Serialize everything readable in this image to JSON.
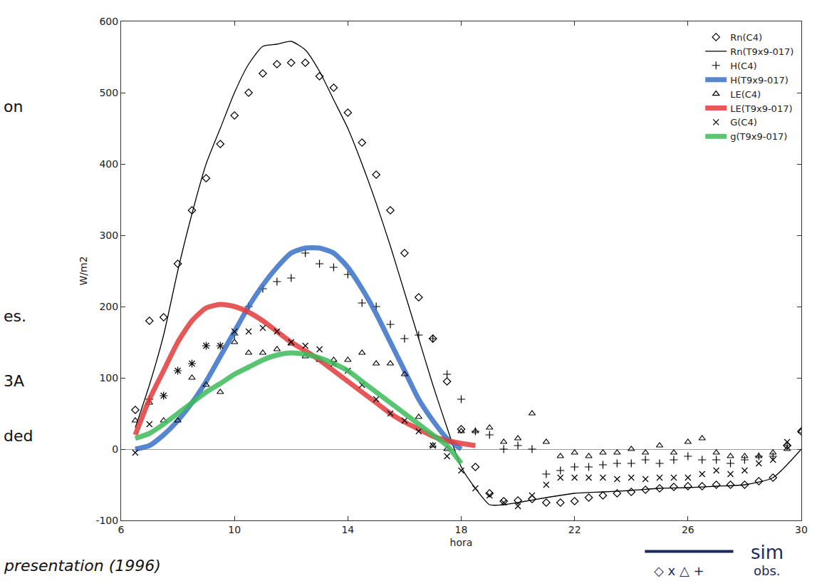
{
  "chart_data": {
    "type": "line",
    "xlabel": "hora",
    "ylabel": "W/m2",
    "xlim": [
      6,
      30
    ],
    "xticks": [
      6,
      10,
      14,
      18,
      22,
      26,
      30
    ],
    "ylim": [
      -100,
      600
    ],
    "yticks": [
      -100,
      0,
      100,
      200,
      300,
      400,
      500,
      600
    ],
    "grid": false,
    "legend": "upper right",
    "annotations": [
      "on",
      "es.",
      "3A",
      "ded",
      "presentation (1996)",
      "sim",
      "◇ x △ +",
      "obs."
    ],
    "series": [
      {
        "name": "Rn(C4)",
        "type": "scatter",
        "marker": "diamond",
        "color": "#000000",
        "x": [
          6.5,
          7,
          7.5,
          8,
          8.5,
          9,
          9.5,
          10,
          10.5,
          11,
          11.5,
          12,
          12.5,
          13,
          13.5,
          14,
          14.5,
          15,
          15.5,
          16,
          16.5,
          17,
          17.5,
          18,
          18.5,
          19,
          19.5,
          20,
          20.5,
          21,
          21.5,
          22,
          22.5,
          23,
          23.5,
          24,
          24.5,
          25,
          25.5,
          26,
          26.5,
          27,
          27.5,
          28,
          28.5,
          29,
          29.5,
          30
        ],
        "values": [
          55,
          180,
          185,
          260,
          335,
          380,
          428,
          468,
          500,
          527,
          540,
          542,
          542,
          523,
          507,
          472,
          430,
          385,
          335,
          275,
          213,
          155,
          95,
          28,
          -25,
          -62,
          -73,
          -72,
          -70,
          -75,
          -75,
          -73,
          -68,
          -65,
          -62,
          -60,
          -57,
          -55,
          -53,
          -52,
          -52,
          -50,
          -50,
          -50,
          -45,
          -40,
          5,
          25
        ]
      },
      {
        "name": "Rn(T9x9-017)",
        "type": "line",
        "line_style": "solid",
        "color": "#000000",
        "x": [
          6.5,
          7,
          7.5,
          8,
          8.5,
          9,
          9.5,
          10,
          10.5,
          11,
          11.5,
          12,
          12.5,
          13,
          13.5,
          14,
          14.5,
          15,
          15.5,
          16,
          16.5,
          17,
          17.5,
          18,
          18.5,
          19,
          19.5,
          20,
          21,
          22,
          23,
          24,
          25,
          26,
          27,
          28,
          29,
          30
        ],
        "values": [
          30,
          90,
          160,
          250,
          330,
          400,
          450,
          500,
          540,
          565,
          568,
          572,
          560,
          530,
          490,
          450,
          400,
          345,
          285,
          220,
          155,
          90,
          30,
          -25,
          -55,
          -78,
          -78,
          -75,
          -68,
          -62,
          -60,
          -58,
          -55,
          -54,
          -52,
          -50,
          -40,
          0
        ]
      },
      {
        "name": "H(C4)",
        "type": "scatter",
        "marker": "plus",
        "color": "#000000",
        "x": [
          7,
          7.5,
          8,
          8.5,
          9,
          9.5,
          10,
          10.5,
          11,
          11.5,
          12,
          12.5,
          13,
          13.5,
          14,
          14.5,
          15,
          15.5,
          16,
          16.5,
          17,
          17.5,
          18,
          18.5,
          19,
          19.5,
          20,
          20.5,
          21,
          21.5,
          22,
          22.5,
          23,
          23.5,
          24,
          24.5,
          25,
          25.5,
          26,
          26.5,
          27,
          27.5,
          28,
          28.5,
          29,
          29.5
        ],
        "values": [
          70,
          75,
          110,
          120,
          145,
          145,
          160,
          200,
          225,
          235,
          240,
          275,
          260,
          255,
          245,
          205,
          200,
          175,
          155,
          160,
          155,
          105,
          70,
          25,
          20,
          0,
          5,
          0,
          -35,
          -30,
          -25,
          -25,
          -22,
          -20,
          -20,
          -15,
          -20,
          -15,
          -10,
          -15,
          -15,
          -20,
          -15,
          -10,
          -10,
          5
        ]
      },
      {
        "name": "H(T9x9-017)",
        "type": "line",
        "line_style": "highlighted",
        "color": "#3a72c8",
        "x": [
          6.5,
          7,
          7.5,
          8,
          8.5,
          9,
          9.5,
          10,
          10.5,
          11,
          11.5,
          12,
          12.5,
          13,
          13.5,
          14,
          14.5,
          15,
          15.5,
          16,
          16.5,
          17,
          17.5,
          18
        ],
        "values": [
          0,
          5,
          20,
          40,
          65,
          95,
          130,
          165,
          200,
          230,
          255,
          275,
          282,
          282,
          275,
          255,
          225,
          190,
          150,
          110,
          70,
          40,
          15,
          0
        ]
      },
      {
        "name": "LE(C4)",
        "type": "scatter",
        "marker": "triangle",
        "color": "#000000",
        "x": [
          6.5,
          7,
          7.5,
          8,
          8.5,
          9,
          9.5,
          10,
          10.5,
          11,
          11.5,
          12,
          12.5,
          13,
          13.5,
          14,
          14.5,
          15,
          15.5,
          16,
          16.5,
          17,
          17.5,
          18,
          18.5,
          19,
          19.5,
          20,
          20.5,
          21,
          21.5,
          22,
          22.5,
          23,
          23.5,
          24,
          24.5,
          25,
          25.5,
          26,
          26.5,
          27,
          27.5,
          28,
          28.5,
          29,
          29.5,
          30
        ],
        "values": [
          40,
          65,
          40,
          40,
          100,
          90,
          80,
          150,
          135,
          135,
          140,
          148,
          130,
          125,
          125,
          125,
          135,
          120,
          120,
          105,
          45,
          5,
          0,
          25,
          25,
          30,
          10,
          15,
          50,
          10,
          -10,
          -5,
          -10,
          -5,
          -5,
          0,
          -5,
          5,
          -5,
          10,
          15,
          -5,
          -10,
          -10,
          -10,
          -5,
          0,
          25
        ]
      },
      {
        "name": "LE(T9x9-017)",
        "type": "line",
        "line_style": "highlighted",
        "color": "#e23c3c",
        "x": [
          6.5,
          7,
          7.5,
          8,
          8.5,
          9,
          9.5,
          10,
          10.5,
          11,
          11.5,
          12,
          12.5,
          13,
          13.5,
          14,
          14.5,
          15,
          15.5,
          16,
          16.5,
          17,
          17.5,
          18,
          18.5
        ],
        "values": [
          20,
          70,
          110,
          150,
          180,
          198,
          203,
          200,
          192,
          180,
          165,
          150,
          138,
          125,
          110,
          95,
          80,
          65,
          50,
          38,
          28,
          18,
          12,
          8,
          5
        ]
      },
      {
        "name": "G(C4)",
        "type": "scatter",
        "marker": "x",
        "color": "#000000",
        "x": [
          6.5,
          7,
          7.5,
          8,
          8.5,
          9,
          9.5,
          10,
          10.5,
          11,
          11.5,
          12,
          12.5,
          13,
          13.5,
          14,
          14.5,
          15,
          15.5,
          16,
          16.5,
          17,
          17.5,
          18,
          18.5,
          19,
          19.5,
          20,
          20.5,
          21,
          21.5,
          22,
          22.5,
          23,
          23.5,
          24,
          24.5,
          25,
          25.5,
          26,
          26.5,
          27,
          27.5,
          28,
          28.5,
          29,
          29.5
        ],
        "values": [
          -5,
          35,
          75,
          110,
          120,
          145,
          145,
          165,
          165,
          170,
          165,
          150,
          145,
          140,
          120,
          110,
          90,
          70,
          50,
          40,
          25,
          5,
          -10,
          -30,
          -55,
          -65,
          -75,
          -80,
          -65,
          -50,
          -40,
          -40,
          -40,
          -40,
          -42,
          -40,
          -42,
          -40,
          -40,
          -40,
          -35,
          -30,
          -35,
          -30,
          -20,
          -15,
          10
        ]
      },
      {
        "name": "g(T9x9-017)",
        "type": "line",
        "line_style": "highlighted",
        "color": "#3dbb5a",
        "x": [
          6.5,
          7,
          7.5,
          8,
          8.5,
          9,
          9.5,
          10,
          10.5,
          11,
          11.5,
          12,
          12.5,
          13,
          13.5,
          14,
          14.5,
          15,
          15.5,
          16,
          16.5,
          17,
          17.5,
          18
        ],
        "values": [
          15,
          22,
          35,
          50,
          65,
          80,
          92,
          105,
          115,
          125,
          132,
          135,
          133,
          128,
          120,
          110,
          95,
          80,
          65,
          50,
          35,
          20,
          5,
          -20
        ]
      }
    ]
  }
}
